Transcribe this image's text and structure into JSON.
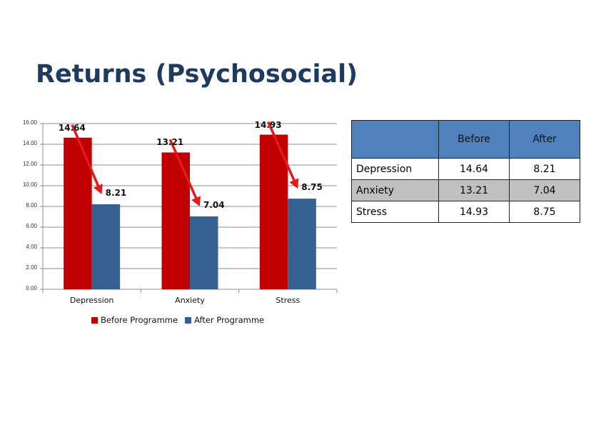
{
  "title": "Returns (Psychosocial)",
  "colors": {
    "before": "#c00000",
    "after": "#376092",
    "header": "#4f81bd",
    "arrow": "#e41a1a",
    "title": "#1f3a5f"
  },
  "chart_data": {
    "type": "bar",
    "title": "",
    "xlabel": "",
    "ylabel": "",
    "categories": [
      "Depression",
      "Anxiety",
      "Stress"
    ],
    "series": [
      {
        "name": "Before Programme",
        "values": [
          14.64,
          13.21,
          14.93
        ]
      },
      {
        "name": "After Programme",
        "values": [
          8.21,
          7.04,
          8.75
        ]
      }
    ],
    "ylim": [
      0,
      16
    ],
    "yticks": [
      "0.00",
      "2.00",
      "4.00",
      "6.00",
      "8.00",
      "10.00",
      "12.00",
      "14.00",
      "16.00"
    ],
    "grid": true,
    "legend_position": "bottom",
    "data_labels": {
      "before": [
        "14.64",
        "13.21",
        "14.93"
      ],
      "after": [
        "8.21",
        "7.04",
        "8.75"
      ]
    },
    "annotations": "red arrows pointing from each Before value down to the After value"
  },
  "table": {
    "headers": [
      "",
      "Before",
      "After"
    ],
    "rows": [
      {
        "label": "Depression",
        "before": "14.64",
        "after": "8.21"
      },
      {
        "label": "Anxiety",
        "before": "13.21",
        "after": "7.04"
      },
      {
        "label": "Stress",
        "before": "14.93",
        "after": "8.75"
      }
    ]
  }
}
